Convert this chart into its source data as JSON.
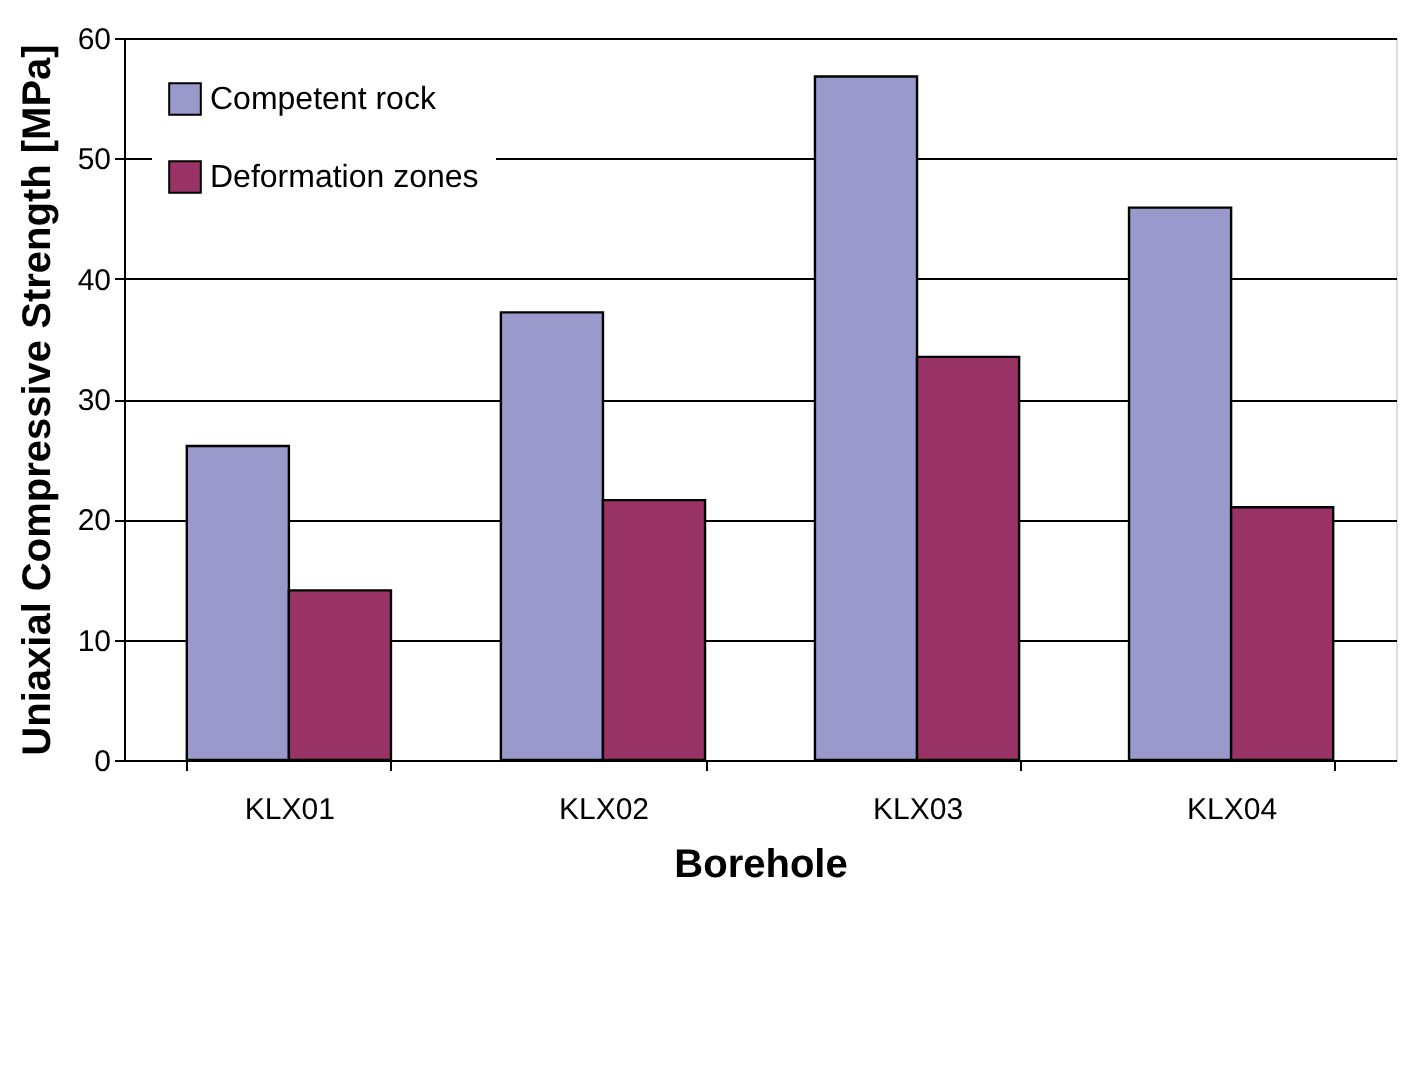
{
  "chart_data": {
    "type": "bar",
    "xlabel": "Borehole",
    "ylabel": "Uniaxial Compressive Strength [MPa]",
    "categories": [
      "KLX01",
      "KLX02",
      "KLX03",
      "KLX04"
    ],
    "series": [
      {
        "name": "Competent rock",
        "color": "#9999cc",
        "values": [
          26.1,
          37.2,
          56.8,
          45.9
        ]
      },
      {
        "name": "Deformation zones",
        "color": "#993366",
        "values": [
          14.1,
          21.6,
          33.5,
          21.0
        ]
      }
    ],
    "ylim": [
      0,
      60
    ],
    "yticks": [
      0,
      10,
      20,
      30,
      40,
      50,
      60
    ],
    "grid": "y",
    "legend": "top left"
  }
}
